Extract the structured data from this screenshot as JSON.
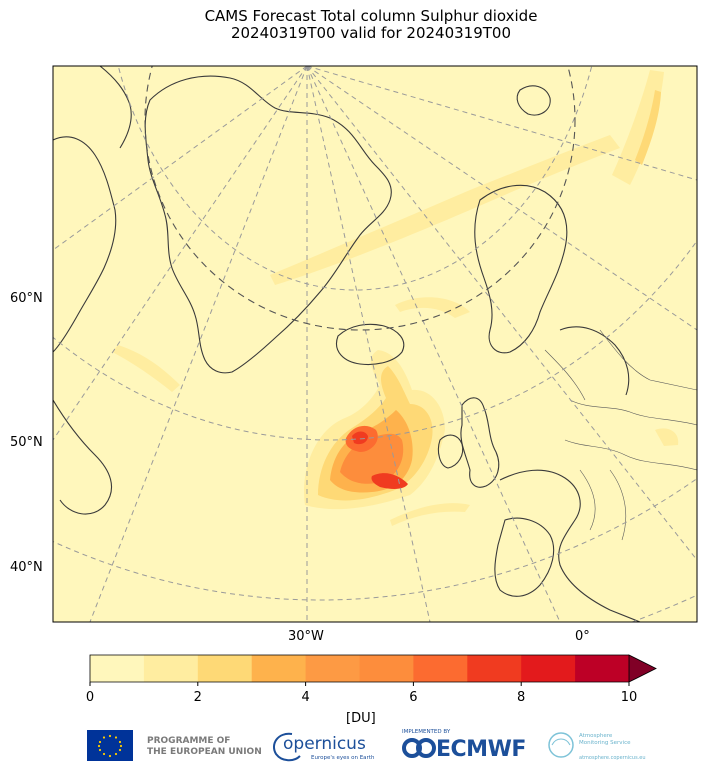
{
  "title": {
    "line1": "CAMS Forecast Total column Sulphur dioxide",
    "line2": "20240319T00 valid for 20240319T00"
  },
  "map": {
    "latitude_labels": [
      "60°N",
      "50°N",
      "40°N"
    ],
    "longitude_labels": [
      "30°W",
      "0°"
    ]
  },
  "colorbar": {
    "unit": "[DU]",
    "min": 0,
    "max": 10,
    "tick_labels": [
      "0",
      "2",
      "4",
      "6",
      "8",
      "10"
    ],
    "colors": [
      "#fff7bc",
      "#ffeda0",
      "#fed976",
      "#feb24c",
      "#fd9a44",
      "#fd8d3c",
      "#fc6b30",
      "#f03b20",
      "#e31a1c",
      "#bd0026"
    ],
    "extend_color": "#800026"
  },
  "logos": {
    "eu_line1": "PROGRAMME OF",
    "eu_line2": "THE EUROPEAN UNION",
    "copernicus": "opernicus",
    "copernicus_sub": "Europe's eyes on Earth",
    "ecmwf_small": "IMPLEMENTED BY",
    "ecmwf": "ECMWF",
    "atmosphere_line1": "Atmosphere",
    "atmosphere_line2": "Monitoring Service",
    "atmosphere_url": "atmosphere.copernicus.eu"
  }
}
